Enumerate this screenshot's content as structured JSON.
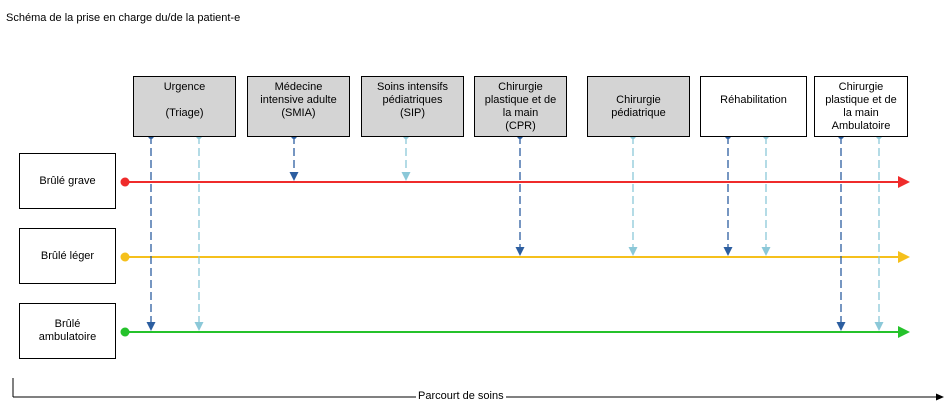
{
  "title": "Schéma de la prise en charge du/de la patient-e",
  "axis_label": "Parcourt de soins",
  "colors": {
    "grave": "#ef2b2b",
    "leger": "#f5c01c",
    "ambulatoire": "#25c22b",
    "dark_blue": "#2c5ea0",
    "light_blue": "#8bc8d8",
    "header_grey": "#d4d4d4"
  },
  "services": [
    {
      "lines": [
        "Urgence",
        "",
        "(Triage)"
      ],
      "style": "grey"
    },
    {
      "lines": [
        "Médecine",
        "intensive adulte",
        "(SMIA)"
      ],
      "style": "grey"
    },
    {
      "lines": [
        "Soins intensifs",
        "pédiatriques",
        "(SIP)"
      ],
      "style": "grey"
    },
    {
      "lines": [
        "Chirurgie",
        "plastique et de",
        "la main",
        "(CPR)"
      ],
      "style": "grey"
    },
    {
      "lines": [
        "",
        "Chirurgie",
        "pédiatrique"
      ],
      "style": "grey"
    },
    {
      "lines": [
        "",
        "Réhabilitation"
      ],
      "style": "white"
    },
    {
      "lines": [
        "Chirurgie",
        "plastique et de",
        "la main",
        "Ambulatoire"
      ],
      "style": "white"
    }
  ],
  "patients": [
    {
      "label": "Brûlé grave",
      "color_key": "grave"
    },
    {
      "label": "Brûlé léger",
      "color_key": "leger"
    },
    {
      "label": "Brûlé\nambulatoire",
      "color_key": "ambulatoire"
    }
  ],
  "connections": [
    {
      "service": 0,
      "tone": "dark",
      "patient": 2
    },
    {
      "service": 0,
      "tone": "light",
      "patient": 2
    },
    {
      "service": 1,
      "tone": "dark",
      "patient": 0
    },
    {
      "service": 2,
      "tone": "light",
      "patient": 0
    },
    {
      "service": 3,
      "tone": "dark",
      "patient": 1
    },
    {
      "service": 4,
      "tone": "light",
      "patient": 1
    },
    {
      "service": 5,
      "tone": "dark",
      "patient": 1
    },
    {
      "service": 5,
      "tone": "light",
      "patient": 1
    },
    {
      "service": 6,
      "tone": "dark",
      "patient": 2
    },
    {
      "service": 6,
      "tone": "light",
      "patient": 2
    }
  ]
}
